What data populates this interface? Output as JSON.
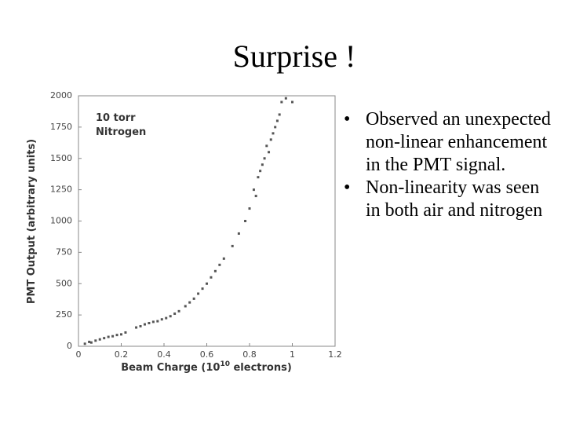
{
  "slide": {
    "title": "Surprise !",
    "bullets": [
      "Observed an unexpected non-linear enhancement in the PMT signal.",
      "Non-linearity was seen in both air and nitrogen"
    ]
  },
  "chart_data": {
    "type": "scatter",
    "annotation": [
      "10 torr",
      "Nitrogen"
    ],
    "xlabel": [
      "Beam Charge (10",
      "10",
      " electrons)"
    ],
    "ylabel": "PMT Output (arbitrary units)",
    "xlim": [
      0,
      1.2
    ],
    "xticks": [
      0,
      0.2,
      0.4,
      0.6,
      0.8,
      1,
      1.2
    ],
    "ylim": [
      0,
      2000
    ],
    "yticks": [
      0,
      250,
      500,
      750,
      1000,
      1250,
      1500,
      1750,
      2000
    ],
    "color": "#555555",
    "x": [
      0.03,
      0.05,
      0.06,
      0.08,
      0.1,
      0.12,
      0.14,
      0.16,
      0.18,
      0.2,
      0.22,
      0.27,
      0.29,
      0.31,
      0.33,
      0.35,
      0.37,
      0.39,
      0.41,
      0.43,
      0.45,
      0.47,
      0.5,
      0.52,
      0.54,
      0.56,
      0.58,
      0.6,
      0.62,
      0.64,
      0.66,
      0.68,
      0.72,
      0.75,
      0.78,
      0.8,
      0.82,
      0.83,
      0.84,
      0.85,
      0.86,
      0.87,
      0.88,
      0.89,
      0.9,
      0.91,
      0.92,
      0.93,
      0.94,
      0.95,
      0.97,
      1.0
    ],
    "y": [
      20,
      35,
      30,
      45,
      55,
      65,
      75,
      80,
      90,
      95,
      110,
      150,
      160,
      175,
      185,
      195,
      200,
      215,
      225,
      240,
      260,
      280,
      320,
      350,
      380,
      420,
      460,
      500,
      550,
      600,
      650,
      700,
      800,
      900,
      1000,
      1100,
      1250,
      1200,
      1350,
      1400,
      1450,
      1500,
      1600,
      1550,
      1650,
      1700,
      1750,
      1800,
      1850,
      1950,
      1980,
      1950
    ]
  }
}
